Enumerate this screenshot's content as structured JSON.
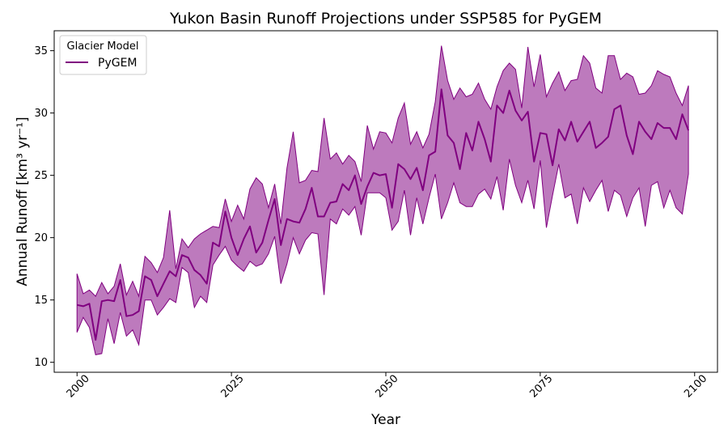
{
  "chart_data": {
    "type": "line",
    "title": "Yukon Basin Runoff Projections under SSP585 for PyGEM",
    "xlabel": "Year",
    "ylabel": "Annual Runoff [km³ yr⁻¹]",
    "xlim": [
      1996.3,
      2103.7
    ],
    "ylim": [
      9.2,
      36.6
    ],
    "xticks": [
      2000,
      2025,
      2050,
      2075,
      2100
    ],
    "yticks": [
      10,
      15,
      20,
      25,
      30,
      35
    ],
    "grid": false,
    "legend": {
      "title": "Glacier Model",
      "placement": "top-left",
      "entries": [
        "PyGEM"
      ]
    },
    "series": [
      {
        "name": "PyGEM",
        "color": "#800080",
        "band_color": "#800080",
        "band_opacity": 0.52,
        "x": [
          2000,
          2001,
          2002,
          2003,
          2004,
          2005,
          2006,
          2007,
          2008,
          2009,
          2010,
          2011,
          2012,
          2013,
          2014,
          2015,
          2016,
          2017,
          2018,
          2019,
          2020,
          2021,
          2022,
          2023,
          2024,
          2025,
          2026,
          2027,
          2028,
          2029,
          2030,
          2031,
          2032,
          2033,
          2034,
          2035,
          2036,
          2037,
          2038,
          2039,
          2040,
          2041,
          2042,
          2043,
          2044,
          2045,
          2046,
          2047,
          2048,
          2049,
          2050,
          2051,
          2052,
          2053,
          2054,
          2055,
          2056,
          2057,
          2058,
          2059,
          2060,
          2061,
          2062,
          2063,
          2064,
          2065,
          2066,
          2067,
          2068,
          2069,
          2070,
          2071,
          2072,
          2073,
          2074,
          2075,
          2076,
          2077,
          2078,
          2079,
          2080,
          2081,
          2082,
          2083,
          2084,
          2085,
          2086,
          2087,
          2088,
          2089,
          2090,
          2091,
          2092,
          2093,
          2094,
          2095,
          2096,
          2097,
          2098,
          2099
        ],
        "mean": [
          14.6,
          14.5,
          14.7,
          11.8,
          14.9,
          15.0,
          14.9,
          16.6,
          13.7,
          13.8,
          14.1,
          16.9,
          16.6,
          15.3,
          16.3,
          17.3,
          16.9,
          18.6,
          18.4,
          17.4,
          17.0,
          16.3,
          19.6,
          19.3,
          22.1,
          20.0,
          18.6,
          19.9,
          20.9,
          18.8,
          19.6,
          21.4,
          23.1,
          19.4,
          21.5,
          21.3,
          21.2,
          22.3,
          24.0,
          21.7,
          21.7,
          22.8,
          22.9,
          24.3,
          23.8,
          25.0,
          22.7,
          24.1,
          25.2,
          25.0,
          25.1,
          22.4,
          25.9,
          25.5,
          24.7,
          25.6,
          23.8,
          26.6,
          26.9,
          31.9,
          28.2,
          27.6,
          25.5,
          28.4,
          27.0,
          29.3,
          27.9,
          26.1,
          30.6,
          30.0,
          31.8,
          30.2,
          29.4,
          30.1,
          26.1,
          28.4,
          28.3,
          25.8,
          28.7,
          27.8,
          29.3,
          27.7,
          28.5,
          29.3,
          27.2,
          27.6,
          28.1,
          30.3,
          30.6,
          28.2,
          26.7,
          29.3,
          28.5,
          27.9,
          29.2,
          28.8,
          28.8,
          27.9,
          29.9,
          28.6
        ],
        "upper": [
          17.1,
          15.5,
          15.8,
          15.3,
          16.4,
          15.5,
          16.1,
          17.9,
          15.4,
          16.5,
          15.3,
          18.5,
          18.0,
          17.2,
          18.4,
          22.2,
          17.5,
          19.9,
          19.2,
          19.9,
          20.3,
          20.6,
          20.9,
          20.8,
          23.1,
          21.3,
          22.6,
          21.5,
          23.9,
          24.8,
          24.3,
          22.4,
          24.3,
          21.1,
          25.6,
          28.5,
          24.4,
          24.6,
          25.4,
          25.3,
          29.6,
          26.3,
          26.8,
          25.9,
          26.6,
          26.1,
          24.5,
          29.0,
          27.1,
          28.5,
          28.4,
          27.6,
          29.6,
          30.8,
          27.5,
          28.5,
          27.2,
          28.3,
          30.9,
          35.4,
          32.6,
          31.1,
          32.0,
          31.3,
          31.5,
          32.4,
          31.1,
          30.3,
          32.1,
          33.4,
          34.0,
          33.5,
          30.4,
          35.3,
          32.1,
          34.7,
          31.3,
          32.4,
          33.3,
          31.8,
          32.6,
          32.7,
          34.6,
          34.0,
          32.0,
          31.6,
          34.6,
          34.6,
          32.7,
          33.2,
          32.9,
          31.5,
          31.6,
          32.2,
          33.4,
          33.1,
          32.9,
          31.6,
          30.6,
          32.2
        ],
        "lower": [
          12.4,
          13.6,
          12.8,
          10.6,
          10.7,
          13.5,
          11.5,
          14.0,
          12.1,
          12.6,
          11.4,
          15.0,
          15.0,
          13.8,
          14.4,
          15.1,
          14.8,
          17.6,
          17.2,
          14.4,
          15.3,
          14.8,
          17.8,
          18.6,
          19.3,
          18.2,
          17.7,
          17.3,
          18.1,
          17.7,
          17.9,
          18.7,
          20.1,
          16.3,
          17.9,
          20.0,
          18.7,
          19.8,
          20.4,
          20.3,
          15.4,
          21.5,
          21.1,
          22.3,
          21.8,
          22.5,
          20.2,
          23.6,
          23.6,
          23.6,
          23.2,
          20.6,
          21.3,
          23.8,
          20.2,
          23.2,
          21.1,
          23.2,
          25.1,
          21.5,
          22.8,
          24.4,
          22.8,
          22.5,
          22.5,
          23.5,
          23.9,
          23.1,
          24.9,
          22.2,
          26.3,
          24.2,
          22.8,
          24.6,
          22.3,
          26.2,
          20.8,
          23.4,
          25.9,
          23.2,
          23.5,
          21.1,
          24.0,
          22.9,
          23.8,
          24.6,
          22.1,
          23.8,
          23.4,
          21.7,
          23.2,
          24.0,
          20.9,
          24.2,
          24.5,
          22.4,
          23.8,
          22.4,
          21.9,
          25.1
        ]
      }
    ]
  }
}
